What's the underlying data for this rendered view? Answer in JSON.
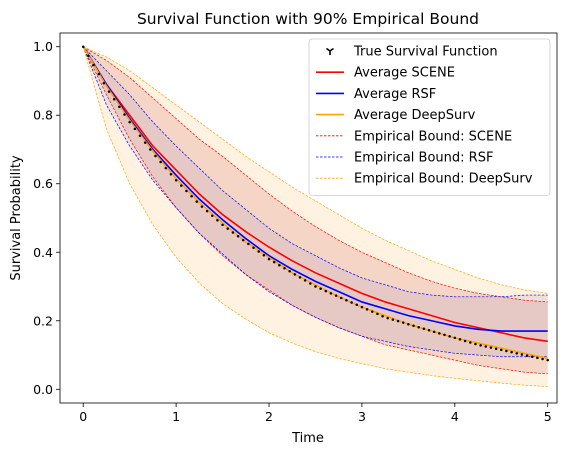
{
  "chart_data": {
    "type": "line",
    "title": "Survival Function with 90% Empirical Bound",
    "xlabel": "Time",
    "ylabel": "Survival Probability",
    "xlim": [
      -0.25,
      5.1
    ],
    "ylim": [
      -0.04,
      1.04
    ],
    "xticks": [
      0,
      1,
      2,
      3,
      4,
      5
    ],
    "xtick_labels": [
      "0",
      "1",
      "2",
      "3",
      "4",
      "5"
    ],
    "yticks": [
      0.0,
      0.2,
      0.4,
      0.6,
      0.8,
      1.0
    ],
    "ytick_labels": [
      "0.0",
      "0.2",
      "0.4",
      "0.6",
      "0.8",
      "1.0"
    ],
    "grid": false,
    "legend_position": "top-right",
    "x": [
      0,
      0.25,
      0.5,
      0.75,
      1,
      1.25,
      1.5,
      1.75,
      2,
      2.25,
      2.5,
      2.75,
      3,
      3.25,
      3.5,
      3.75,
      4,
      4.25,
      4.5,
      4.75,
      5
    ],
    "series": [
      {
        "name": "True Survival Function",
        "kind": "marker",
        "color": "#000000",
        "values": [
          1.0,
          0.88,
          0.78,
          0.69,
          0.61,
          0.54,
          0.48,
          0.43,
          0.38,
          0.34,
          0.3,
          0.27,
          0.24,
          0.21,
          0.19,
          0.17,
          0.15,
          0.13,
          0.115,
          0.1,
          0.085
        ]
      },
      {
        "name": "Average SCENE",
        "kind": "line",
        "color": "#ff0000",
        "values": [
          1.0,
          0.89,
          0.8,
          0.71,
          0.64,
          0.57,
          0.51,
          0.46,
          0.415,
          0.375,
          0.34,
          0.31,
          0.28,
          0.255,
          0.235,
          0.215,
          0.195,
          0.18,
          0.165,
          0.15,
          0.14
        ]
      },
      {
        "name": "Average RSF",
        "kind": "line",
        "color": "#0000ff",
        "values": [
          1.0,
          0.89,
          0.79,
          0.7,
          0.625,
          0.555,
          0.495,
          0.44,
          0.39,
          0.35,
          0.315,
          0.285,
          0.255,
          0.235,
          0.215,
          0.2,
          0.185,
          0.175,
          0.17,
          0.17,
          0.17
        ]
      },
      {
        "name": "Average DeepSurv",
        "kind": "line",
        "color": "#ffa500",
        "values": [
          1.0,
          0.885,
          0.785,
          0.695,
          0.615,
          0.545,
          0.485,
          0.43,
          0.385,
          0.34,
          0.305,
          0.27,
          0.24,
          0.215,
          0.19,
          0.17,
          0.15,
          0.135,
          0.12,
          0.105,
          0.09
        ]
      }
    ],
    "bounds": [
      {
        "name": "Empirical Bound: SCENE",
        "color": "#ff0000",
        "fill": "#c0394a",
        "fill_opacity": 0.22,
        "lower": [
          1.0,
          0.86,
          0.73,
          0.62,
          0.53,
          0.455,
          0.39,
          0.335,
          0.29,
          0.245,
          0.21,
          0.18,
          0.155,
          0.13,
          0.115,
          0.1,
          0.085,
          0.07,
          0.06,
          0.05,
          0.045
        ],
        "upper": [
          1.0,
          0.96,
          0.91,
          0.85,
          0.79,
          0.73,
          0.68,
          0.625,
          0.57,
          0.52,
          0.475,
          0.435,
          0.4,
          0.37,
          0.34,
          0.315,
          0.295,
          0.28,
          0.27,
          0.26,
          0.255
        ]
      },
      {
        "name": "Empirical Bound: RSF",
        "color": "#0000ff",
        "fill": "#8a8add",
        "fill_opacity": 0.22,
        "lower": [
          1.0,
          0.83,
          0.71,
          0.61,
          0.53,
          0.455,
          0.395,
          0.335,
          0.285,
          0.245,
          0.21,
          0.18,
          0.155,
          0.14,
          0.125,
          0.115,
          0.105,
          0.1,
          0.095,
          0.095,
          0.095
        ],
        "upper": [
          1.0,
          0.93,
          0.86,
          0.78,
          0.71,
          0.645,
          0.58,
          0.525,
          0.47,
          0.425,
          0.39,
          0.355,
          0.325,
          0.305,
          0.285,
          0.275,
          0.27,
          0.27,
          0.27,
          0.275,
          0.275
        ]
      },
      {
        "name": "Empirical Bound: DeepSurv",
        "color": "#ffa500",
        "fill": "#ffd7a0",
        "fill_opacity": 0.32,
        "lower": [
          1.0,
          0.76,
          0.6,
          0.48,
          0.385,
          0.31,
          0.25,
          0.205,
          0.165,
          0.135,
          0.11,
          0.09,
          0.075,
          0.06,
          0.05,
          0.04,
          0.032,
          0.025,
          0.018,
          0.012,
          0.008
        ],
        "upper": [
          1.0,
          0.97,
          0.93,
          0.88,
          0.83,
          0.78,
          0.73,
          0.68,
          0.635,
          0.59,
          0.55,
          0.51,
          0.47,
          0.435,
          0.405,
          0.375,
          0.35,
          0.325,
          0.305,
          0.29,
          0.28
        ]
      }
    ]
  }
}
